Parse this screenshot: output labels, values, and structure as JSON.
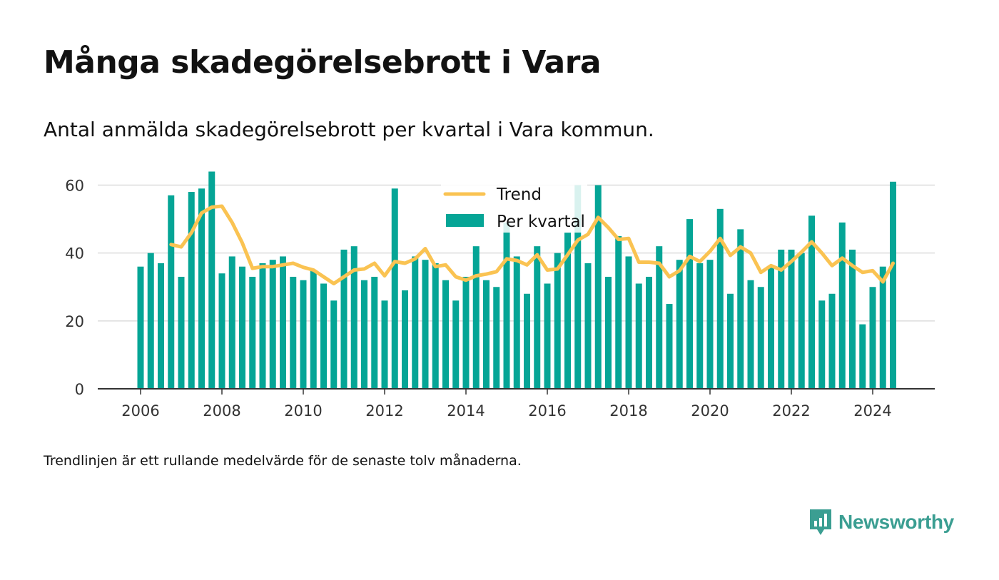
{
  "header": {
    "title": "Många skadegörelsebrott i Vara",
    "subtitle": "Antal anmälda skadegörelsebrott per kvartal i Vara kommun."
  },
  "footer": {
    "note": "Trendlinjen är ett rullande medelvärde för de senaste tolv månaderna.",
    "logo_text": "Newsworthy"
  },
  "colors": {
    "bars": "#05a596",
    "trend": "#fac352",
    "grid": "#dddddd",
    "axis": "#333333",
    "logo": "#3b9e92"
  },
  "chart_data": {
    "type": "bar",
    "x_start_year": 2006,
    "periods": [
      "2006Q1",
      "2006Q2",
      "2006Q3",
      "2006Q4",
      "2007Q1",
      "2007Q2",
      "2007Q3",
      "2007Q4",
      "2008Q1",
      "2008Q2",
      "2008Q3",
      "2008Q4",
      "2009Q1",
      "2009Q2",
      "2009Q3",
      "2009Q4",
      "2010Q1",
      "2010Q2",
      "2010Q3",
      "2010Q4",
      "2011Q1",
      "2011Q2",
      "2011Q3",
      "2011Q4",
      "2012Q1",
      "2012Q2",
      "2012Q3",
      "2012Q4",
      "2013Q1",
      "2013Q2",
      "2013Q3",
      "2013Q4",
      "2014Q1",
      "2014Q2",
      "2014Q3",
      "2014Q4",
      "2015Q1",
      "2015Q2",
      "2015Q3",
      "2015Q4",
      "2016Q1",
      "2016Q2",
      "2016Q3",
      "2016Q4",
      "2017Q1",
      "2017Q2",
      "2017Q3",
      "2017Q4",
      "2018Q1",
      "2018Q2",
      "2018Q3",
      "2018Q4",
      "2019Q1",
      "2019Q2",
      "2019Q3",
      "2019Q4",
      "2020Q1",
      "2020Q2",
      "2020Q3",
      "2020Q4",
      "2021Q1",
      "2021Q2",
      "2021Q3",
      "2021Q4",
      "2022Q1",
      "2022Q2",
      "2022Q3",
      "2022Q4",
      "2023Q1",
      "2023Q2",
      "2023Q3",
      "2023Q4",
      "2024Q1",
      "2024Q2",
      "2024Q3"
    ],
    "series": [
      {
        "name": "Per kvartal",
        "type": "bar",
        "values": [
          36,
          40,
          37,
          57,
          33,
          58,
          59,
          64,
          34,
          39,
          36,
          33,
          37,
          38,
          39,
          33,
          32,
          35,
          31,
          26,
          41,
          42,
          32,
          33,
          26,
          59,
          29,
          39,
          38,
          37,
          32,
          26,
          33,
          42,
          32,
          30,
          49,
          39,
          28,
          42,
          31,
          40,
          46,
          60,
          37,
          60,
          33,
          45,
          39,
          31,
          33,
          42,
          25,
          38,
          50,
          37,
          38,
          53,
          28,
          47,
          32,
          30,
          36,
          41,
          41,
          40,
          51,
          26,
          28,
          49,
          41,
          19,
          30,
          36,
          61
        ]
      },
      {
        "name": "Trend",
        "type": "line",
        "values": [
          null,
          null,
          null,
          42.5,
          41.8,
          46.0,
          51.8,
          53.5,
          53.8,
          49.0,
          43.0,
          35.5,
          36.0,
          36.0,
          36.5,
          37.0,
          35.8,
          35.0,
          33.0,
          31.0,
          33.0,
          35.0,
          35.3,
          37.0,
          33.3,
          37.5,
          37.0,
          38.3,
          41.3,
          36.0,
          36.5,
          33.0,
          32.0,
          33.3,
          33.8,
          34.5,
          38.3,
          37.8,
          36.5,
          39.5,
          35.0,
          35.3,
          39.5,
          43.8,
          45.5,
          50.5,
          47.5,
          44.0,
          44.3,
          37.3,
          37.3,
          37.0,
          33.0,
          34.8,
          39.0,
          37.5,
          40.5,
          44.3,
          39.3,
          41.8,
          40.0,
          34.3,
          36.3,
          35.0,
          37.5,
          40.3,
          43.3,
          40.0,
          36.3,
          38.5,
          36.3,
          34.3,
          34.8,
          31.5,
          37.0
        ]
      }
    ],
    "x_ticks": [
      "2006",
      "2008",
      "2010",
      "2012",
      "2014",
      "2016",
      "2018",
      "2020",
      "2022",
      "2024"
    ],
    "y_ticks": [
      "0",
      "20",
      "40",
      "60"
    ],
    "ylim": [
      0,
      62
    ],
    "legend": [
      "Trend",
      "Per kvartal"
    ],
    "legend_position": "top-center",
    "grid": true,
    "title": "",
    "xlabel": "",
    "ylabel": ""
  }
}
